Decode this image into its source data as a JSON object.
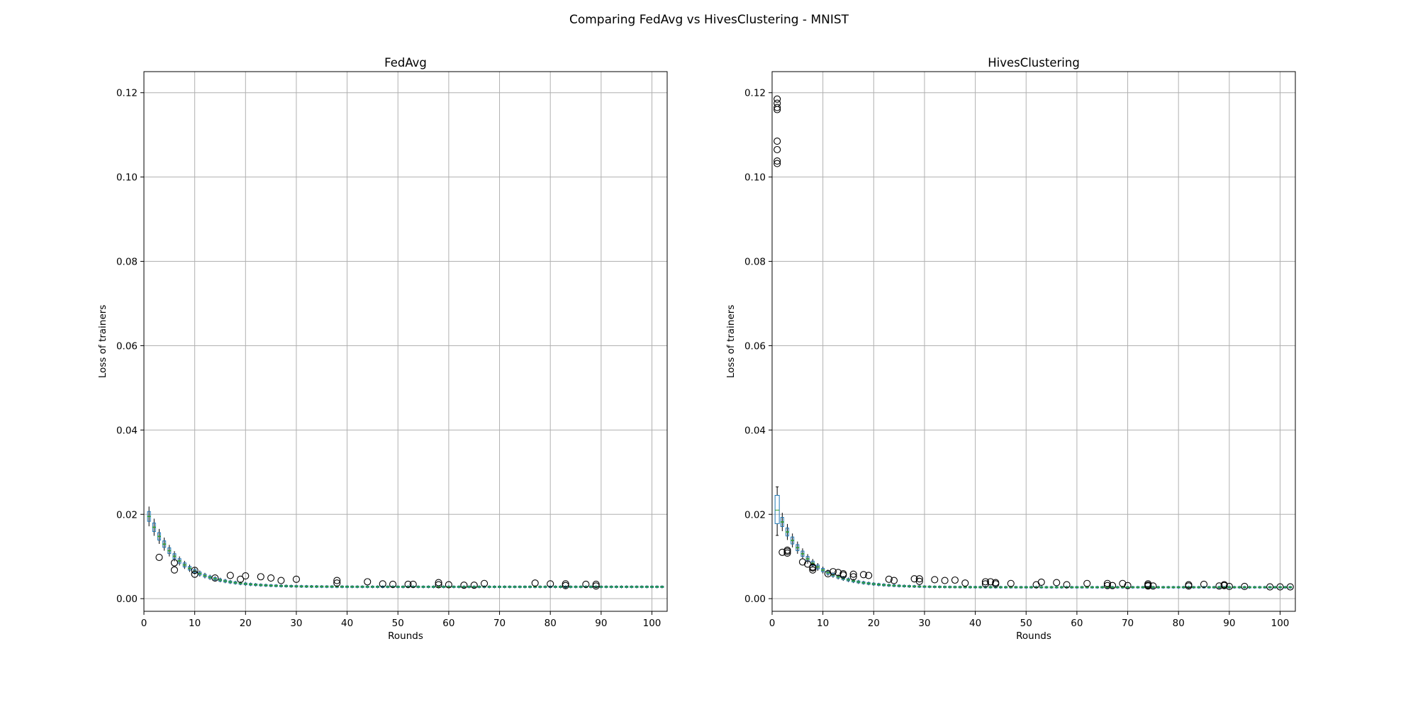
{
  "figure": {
    "title": "Comparing FedAvg vs HivesClustering - MNIST"
  },
  "colors": {
    "box_edge": "#1f77b4",
    "median": "#2ca02c",
    "grid": "#b0b0b0",
    "flier_edge": "#000000"
  },
  "chart_data": [
    {
      "type": "boxplot",
      "title": "FedAvg",
      "xlabel": "Rounds",
      "ylabel": "Loss of trainers",
      "xlim": [
        0,
        103
      ],
      "ylim": [
        -0.003,
        0.125
      ],
      "xticks": [
        "0",
        "10",
        "20",
        "30",
        "40",
        "50",
        "60",
        "70",
        "80",
        "90",
        "100"
      ],
      "yticks": [
        "0.00",
        "0.02",
        "0.04",
        "0.06",
        "0.08",
        "0.10",
        "0.12"
      ],
      "grid": true,
      "rounds_x": [
        1,
        102
      ],
      "median_start": 0.0195,
      "median_decay": 6,
      "median_floor": 0.0028,
      "outliers": [
        [
          3,
          0.0098
        ],
        [
          6,
          0.0085
        ],
        [
          6,
          0.0068
        ],
        [
          10,
          0.0067
        ],
        [
          10,
          0.0058
        ],
        [
          14,
          0.0049
        ],
        [
          17,
          0.0055
        ],
        [
          19,
          0.0046
        ],
        [
          20,
          0.0054
        ],
        [
          23,
          0.0052
        ],
        [
          25,
          0.0049
        ],
        [
          27,
          0.0043
        ],
        [
          30,
          0.0046
        ],
        [
          38,
          0.0043
        ],
        [
          38,
          0.0037
        ],
        [
          44,
          0.004
        ],
        [
          47,
          0.0035
        ],
        [
          49,
          0.0034
        ],
        [
          52,
          0.0034
        ],
        [
          53,
          0.0034
        ],
        [
          58,
          0.0038
        ],
        [
          58,
          0.0033
        ],
        [
          60,
          0.0033
        ],
        [
          63,
          0.0032
        ],
        [
          65,
          0.0032
        ],
        [
          67,
          0.0036
        ],
        [
          77,
          0.0037
        ],
        [
          80,
          0.0035
        ],
        [
          83,
          0.0035
        ],
        [
          83,
          0.0031
        ],
        [
          87,
          0.0034
        ],
        [
          89,
          0.0034
        ],
        [
          89,
          0.003
        ]
      ]
    },
    {
      "type": "boxplot",
      "title": "HivesClustering",
      "xlabel": "Rounds",
      "ylabel": "Loss of trainers",
      "xlim": [
        0,
        103
      ],
      "ylim": [
        -0.003,
        0.125
      ],
      "xticks": [
        "0",
        "10",
        "20",
        "30",
        "40",
        "50",
        "60",
        "70",
        "80",
        "90",
        "100"
      ],
      "yticks": [
        "0.00",
        "0.02",
        "0.04",
        "0.06",
        "0.08",
        "0.10",
        "0.12"
      ],
      "grid": true,
      "rounds_x": [
        1,
        102
      ],
      "median_start": 0.021,
      "median_decay": 6,
      "median_floor": 0.0027,
      "first_box": {
        "q1": 0.0178,
        "median": 0.021,
        "q3": 0.0245,
        "whisker_low": 0.015,
        "whisker_high": 0.0265
      },
      "outliers": [
        [
          1,
          0.1185
        ],
        [
          1,
          0.1175
        ],
        [
          1,
          0.1165
        ],
        [
          1,
          0.116
        ],
        [
          1,
          0.1085
        ],
        [
          1,
          0.1065
        ],
        [
          1,
          0.1038
        ],
        [
          1,
          0.1032
        ],
        [
          2,
          0.011
        ],
        [
          3,
          0.0115
        ],
        [
          3,
          0.0112
        ],
        [
          3,
          0.0108
        ],
        [
          6,
          0.0087
        ],
        [
          7,
          0.0082
        ],
        [
          8,
          0.0075
        ],
        [
          8,
          0.0073
        ],
        [
          8,
          0.0068
        ],
        [
          11,
          0.0059
        ],
        [
          12,
          0.0064
        ],
        [
          13,
          0.0062
        ],
        [
          14,
          0.0059
        ],
        [
          14,
          0.0056
        ],
        [
          16,
          0.0058
        ],
        [
          16,
          0.0052
        ],
        [
          18,
          0.0057
        ],
        [
          19,
          0.0055
        ],
        [
          23,
          0.0046
        ],
        [
          24,
          0.0043
        ],
        [
          28,
          0.0047
        ],
        [
          29,
          0.0047
        ],
        [
          29,
          0.0041
        ],
        [
          32,
          0.0045
        ],
        [
          34,
          0.0043
        ],
        [
          36,
          0.0044
        ],
        [
          38,
          0.0037
        ],
        [
          42,
          0.004
        ],
        [
          42,
          0.0035
        ],
        [
          43,
          0.004
        ],
        [
          44,
          0.0038
        ],
        [
          44,
          0.0035
        ],
        [
          47,
          0.0036
        ],
        [
          52,
          0.0033
        ],
        [
          53,
          0.0039
        ],
        [
          56,
          0.0038
        ],
        [
          58,
          0.0033
        ],
        [
          62,
          0.0036
        ],
        [
          66,
          0.0036
        ],
        [
          66,
          0.0031
        ],
        [
          67,
          0.0031
        ],
        [
          69,
          0.0036
        ],
        [
          70,
          0.0031
        ],
        [
          74,
          0.0035
        ],
        [
          74,
          0.0032
        ],
        [
          74,
          0.003
        ],
        [
          75,
          0.003
        ],
        [
          82,
          0.0033
        ],
        [
          82,
          0.003
        ],
        [
          85,
          0.0034
        ],
        [
          88,
          0.003
        ],
        [
          89,
          0.0033
        ],
        [
          89,
          0.0031
        ],
        [
          90,
          0.0029
        ],
        [
          93,
          0.0029
        ],
        [
          98,
          0.0028
        ],
        [
          100,
          0.0028
        ],
        [
          102,
          0.0028
        ]
      ]
    }
  ]
}
